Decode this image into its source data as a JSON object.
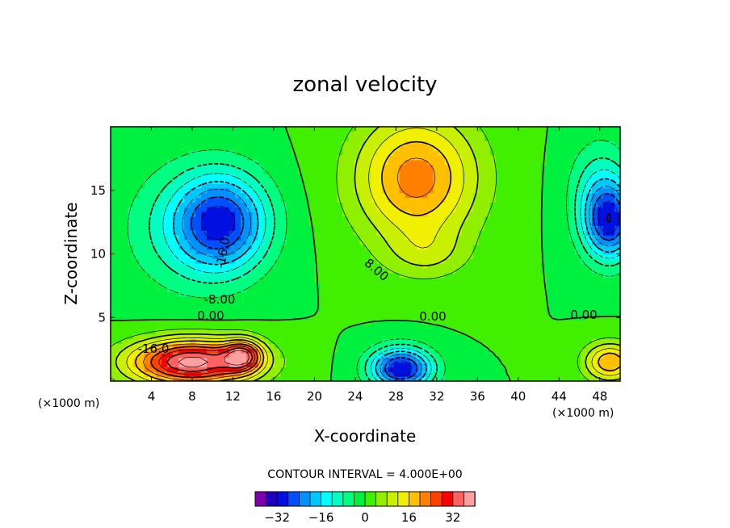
{
  "chart_data": {
    "type": "contour",
    "title": "zonal velocity",
    "xlabel": "X-coordinate",
    "ylabel": "Z-coordinate",
    "x_unit": "(×1000 m)",
    "x_unit_right": "(×1000 m)",
    "xlim": [
      0,
      50
    ],
    "ylim": [
      0,
      20
    ],
    "xticks": [
      4,
      8,
      12,
      16,
      20,
      24,
      28,
      32,
      36,
      40,
      44,
      48
    ],
    "yticks": [
      5,
      10,
      15
    ],
    "contour_interval_text": "CONTOUR INTERVAL = 4.000E+00",
    "contour_labels": [
      "-16.0",
      "-8.00",
      "0.00",
      "8.00",
      "-16.0",
      "0.00",
      "0.00"
    ],
    "colorbar": {
      "levels": [
        -36,
        -32,
        -28,
        -24,
        -20,
        -16,
        -12,
        -8,
        -4,
        0,
        4,
        8,
        12,
        16,
        20,
        24,
        28,
        32,
        36
      ],
      "tick_values": [
        -32,
        -16,
        0,
        16,
        32
      ],
      "tick_labels": [
        "−32",
        "−16",
        "0",
        "16",
        "32"
      ],
      "colors": [
        "#8000b0",
        "#2000c0",
        "#0010e0",
        "#0050ff",
        "#0090ff",
        "#00c8ff",
        "#00ffff",
        "#00ffc0",
        "#00ff80",
        "#00f040",
        "#40f000",
        "#90f000",
        "#c8f000",
        "#f0f000",
        "#ffc000",
        "#ff8000",
        "#ff4000",
        "#ff0000",
        "#ff6060",
        "#ffa0a0"
      ]
    },
    "features": [
      {
        "x": 11,
        "z": 12.5,
        "u": -26,
        "sx": 4.5,
        "sz": 3.8
      },
      {
        "x": 7,
        "z": 12,
        "u": -8,
        "sx": 6,
        "sz": 5
      },
      {
        "x": 30,
        "z": 16,
        "u": 22,
        "sx": 6,
        "sz": 5
      },
      {
        "x": 31,
        "z": 10,
        "u": 6,
        "sx": 4,
        "sz": 2
      },
      {
        "x": 8,
        "z": 1.5,
        "u": 38,
        "sx": 6,
        "sz": 1.8
      },
      {
        "x": 28.5,
        "z": 1,
        "u": -32,
        "sx": 3,
        "sz": 1.6
      },
      {
        "x": 49,
        "z": 12.5,
        "u": -26,
        "sx": 2.5,
        "sz": 3
      },
      {
        "x": 48,
        "z": 15,
        "u": -10,
        "sx": 3,
        "sz": 4
      },
      {
        "x": 49,
        "z": 1.5,
        "u": 20,
        "sx": 2.5,
        "sz": 1.5
      },
      {
        "x": 13,
        "z": 2,
        "u": 24,
        "sx": 1.8,
        "sz": 1.2
      }
    ]
  }
}
